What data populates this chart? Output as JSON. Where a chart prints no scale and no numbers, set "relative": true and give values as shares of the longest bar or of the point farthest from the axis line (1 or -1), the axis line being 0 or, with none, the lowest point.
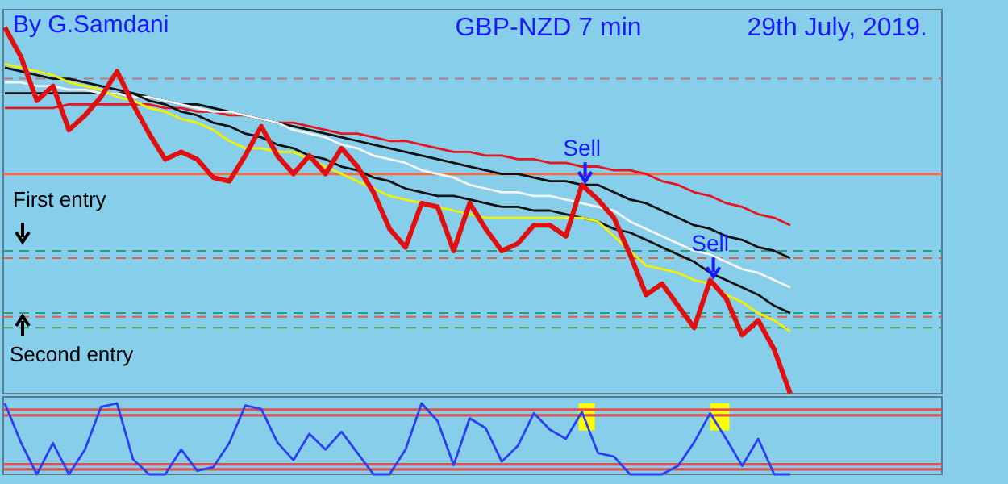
{
  "chart_data": [
    {
      "type": "line",
      "title": "GBP-NZD 7 min",
      "subtitle": "29th July, 2019.",
      "relative": true,
      "categories": [
        null,
        null,
        null,
        null,
        null,
        null,
        null,
        null,
        null,
        null,
        null,
        null,
        null,
        null,
        null,
        null,
        null,
        null,
        null,
        null,
        null,
        null,
        null,
        null,
        null,
        null,
        null,
        null,
        null,
        null,
        null,
        null,
        null,
        null,
        null,
        null,
        null,
        null,
        null,
        null,
        null,
        null,
        null,
        null,
        null,
        null,
        null,
        null,
        null,
        null
      ],
      "series": [
        {
          "color": "#e8141e",
          "values": [
            0.78,
            0.78,
            0.78,
            0.78,
            0.79,
            0.79,
            0.79,
            0.79,
            0.79,
            0.79,
            0.78,
            0.78,
            0.77,
            0.77,
            0.76,
            0.76,
            0.75,
            0.74,
            0.74,
            0.73,
            0.72,
            0.71,
            0.71,
            0.7,
            0.69,
            0.69,
            0.68,
            0.67,
            0.66,
            0.66,
            0.65,
            0.65,
            0.64,
            0.64,
            0.63,
            0.63,
            0.62,
            0.62,
            0.61,
            0.61,
            0.6,
            0.58,
            0.57,
            0.55,
            0.54,
            0.52,
            0.51,
            0.49,
            0.48,
            0.46
          ]
        },
        {
          "color": "#111111",
          "values": [
            0.82,
            0.82,
            0.82,
            0.82,
            0.82,
            0.82,
            0.82,
            0.82,
            0.82,
            0.81,
            0.8,
            0.79,
            0.79,
            0.78,
            0.77,
            0.76,
            0.75,
            0.74,
            0.73,
            0.72,
            0.71,
            0.7,
            0.69,
            0.68,
            0.67,
            0.66,
            0.65,
            0.64,
            0.63,
            0.62,
            0.61,
            0.6,
            0.6,
            0.59,
            0.58,
            0.58,
            0.57,
            0.57,
            0.55,
            0.53,
            0.52,
            0.5,
            0.48,
            0.46,
            0.45,
            0.43,
            0.42,
            0.4,
            0.39,
            0.37
          ]
        },
        {
          "color": "#f4f4f4",
          "values": [
            0.85,
            0.85,
            0.84,
            0.84,
            0.83,
            0.83,
            0.82,
            0.82,
            0.81,
            0.81,
            0.8,
            0.79,
            0.78,
            0.77,
            0.77,
            0.76,
            0.75,
            0.74,
            0.72,
            0.71,
            0.7,
            0.68,
            0.67,
            0.65,
            0.64,
            0.63,
            0.61,
            0.6,
            0.59,
            0.57,
            0.56,
            0.55,
            0.55,
            0.54,
            0.54,
            0.53,
            0.52,
            0.51,
            0.5,
            0.47,
            0.45,
            0.43,
            0.41,
            0.39,
            0.38,
            0.36,
            0.34,
            0.33,
            0.31,
            0.29
          ]
        },
        {
          "color": "#111111",
          "values": [
            0.89,
            0.88,
            0.87,
            0.86,
            0.86,
            0.85,
            0.84,
            0.83,
            0.82,
            0.8,
            0.79,
            0.77,
            0.76,
            0.74,
            0.73,
            0.71,
            0.7,
            0.68,
            0.67,
            0.65,
            0.64,
            0.62,
            0.61,
            0.59,
            0.58,
            0.56,
            0.55,
            0.54,
            0.54,
            0.53,
            0.52,
            0.51,
            0.51,
            0.5,
            0.5,
            0.49,
            0.48,
            0.47,
            0.45,
            0.44,
            0.42,
            0.4,
            0.38,
            0.36,
            0.33,
            0.31,
            0.29,
            0.27,
            0.24,
            0.22
          ]
        },
        {
          "color": "#f0f000",
          "values": [
            0.9,
            0.89,
            0.88,
            0.87,
            0.85,
            0.84,
            0.83,
            0.81,
            0.8,
            0.78,
            0.77,
            0.75,
            0.74,
            0.72,
            0.69,
            0.67,
            0.67,
            0.66,
            0.66,
            0.64,
            0.62,
            0.6,
            0.58,
            0.56,
            0.54,
            0.53,
            0.52,
            0.51,
            0.5,
            0.49,
            0.48,
            0.48,
            0.48,
            0.48,
            0.48,
            0.48,
            0.48,
            0.47,
            0.43,
            0.39,
            0.35,
            0.34,
            0.33,
            0.31,
            0.3,
            0.27,
            0.25,
            0.22,
            0.2,
            0.17
          ]
        },
        {
          "color": "#e01010",
          "values": [
            1,
            0.92,
            0.8,
            0.84,
            0.72,
            0.76,
            0.81,
            0.88,
            0.79,
            0.71,
            0.64,
            0.66,
            0.64,
            0.59,
            0.58,
            0.65,
            0.73,
            0.65,
            0.6,
            0.65,
            0.6,
            0.67,
            0.62,
            0.55,
            0.45,
            0.4,
            0.52,
            0.51,
            0.39,
            0.52,
            0.45,
            0.39,
            0.41,
            0.46,
            0.46,
            0.43,
            0.57,
            0.53,
            0.48,
            0.38,
            0.27,
            0.3,
            0.24,
            0.18,
            0.31,
            0.26,
            0.16,
            0.2,
            0.12,
            0
          ]
        }
      ],
      "ref_lines": [
        {
          "axis": "y",
          "value": 0.86,
          "color": "#b07a8a",
          "line_style": "dashed"
        },
        {
          "axis": "y",
          "value": 0.6,
          "color": "#e87050",
          "line_style": "solid"
        },
        {
          "axis": "y",
          "value": 0.39,
          "color": "#2e9a80",
          "line_style": "dashed"
        },
        {
          "axis": "y",
          "value": 0.37,
          "color": "#e06040",
          "line_style": "dashed"
        },
        {
          "axis": "y",
          "value": 0.22,
          "color": "#2e9a80",
          "line_style": "dashed"
        },
        {
          "axis": "y",
          "value": 0.21,
          "color": "#e06040",
          "line_style": "dashed"
        },
        {
          "axis": "y",
          "value": 0.18,
          "color": "#3a9a60",
          "line_style": "dashed"
        }
      ],
      "annotations": [
        "By G.Samdani",
        "First entry",
        "Second entry",
        "Sell",
        "Sell"
      ]
    },
    {
      "type": "line",
      "relative": true,
      "categories": [
        null,
        null,
        null,
        null,
        null,
        null,
        null,
        null,
        null,
        null,
        null,
        null,
        null,
        null,
        null,
        null,
        null,
        null,
        null,
        null,
        null,
        null,
        null,
        null,
        null,
        null,
        null,
        null,
        null,
        null,
        null,
        null,
        null,
        null,
        null,
        null,
        null,
        null,
        null,
        null,
        null,
        null,
        null,
        null,
        null,
        null,
        null,
        null,
        null,
        null
      ],
      "series": [
        {
          "color": "#2a40f0",
          "values": [
            1,
            0.45,
            0,
            0.44,
            0,
            0.35,
            0.95,
            1,
            0.21,
            0,
            0,
            0.35,
            0.05,
            0.1,
            0.44,
            0.97,
            0.92,
            0.45,
            0.2,
            0.57,
            0.35,
            0.6,
            0.3,
            0,
            0,
            0.35,
            1,
            0.75,
            0.13,
            0.79,
            0.65,
            0.18,
            0.4,
            0.86,
            0.63,
            0.5,
            0.88,
            0.3,
            0.25,
            0,
            0,
            0,
            0.12,
            0.45,
            0.86,
            0.5,
            0.12,
            0.5,
            0,
            0
          ]
        }
      ],
      "ref_lines": [
        {
          "axis": "y",
          "value": 0.91,
          "color": "#e05050",
          "line_style": "solid"
        },
        {
          "axis": "y",
          "value": 0.83,
          "color": "#e05050",
          "line_style": "solid"
        },
        {
          "axis": "y",
          "value": 0.14,
          "color": "#e05050",
          "line_style": "solid"
        },
        {
          "axis": "y",
          "value": 0.07,
          "color": "#e05050",
          "line_style": "solid"
        }
      ]
    }
  ]
}
